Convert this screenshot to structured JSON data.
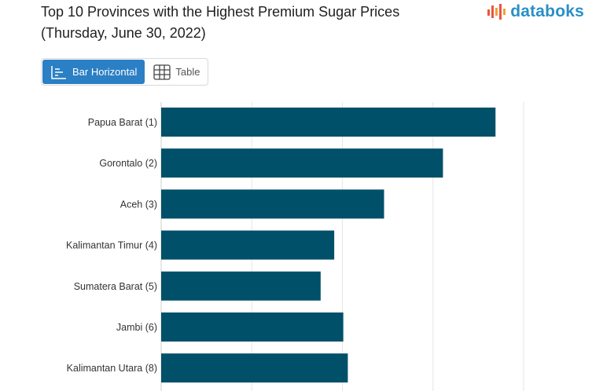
{
  "header": {
    "title_line1": "Top 10 Provinces with the Highest Premium Sugar Prices",
    "title_line2": "(Thursday, June 30, 2022)",
    "logo_text": "databoks"
  },
  "view_toggle": {
    "bar_label": "Bar Horizontal",
    "table_label": "Table",
    "active": "bar"
  },
  "colors": {
    "bar": "#005069",
    "active_toggle": "#2b7fc4",
    "logo": "#2a8fc7",
    "logo_accent": "#e8563f"
  },
  "chart_data": {
    "type": "bar",
    "orientation": "horizontal",
    "categories": [
      "Papua Barat (1)",
      "Gorontalo (2)",
      "Aceh (3)",
      "Kalimantan Timur (4)",
      "Sumatera Barat (5)",
      "Jambi (6)",
      "Kalimantan Utara (8)"
    ],
    "values": [
      18450,
      15550,
      12300,
      9550,
      8800,
      10050,
      10300
    ],
    "xlim": [
      0,
      20000
    ],
    "grid": true
  }
}
